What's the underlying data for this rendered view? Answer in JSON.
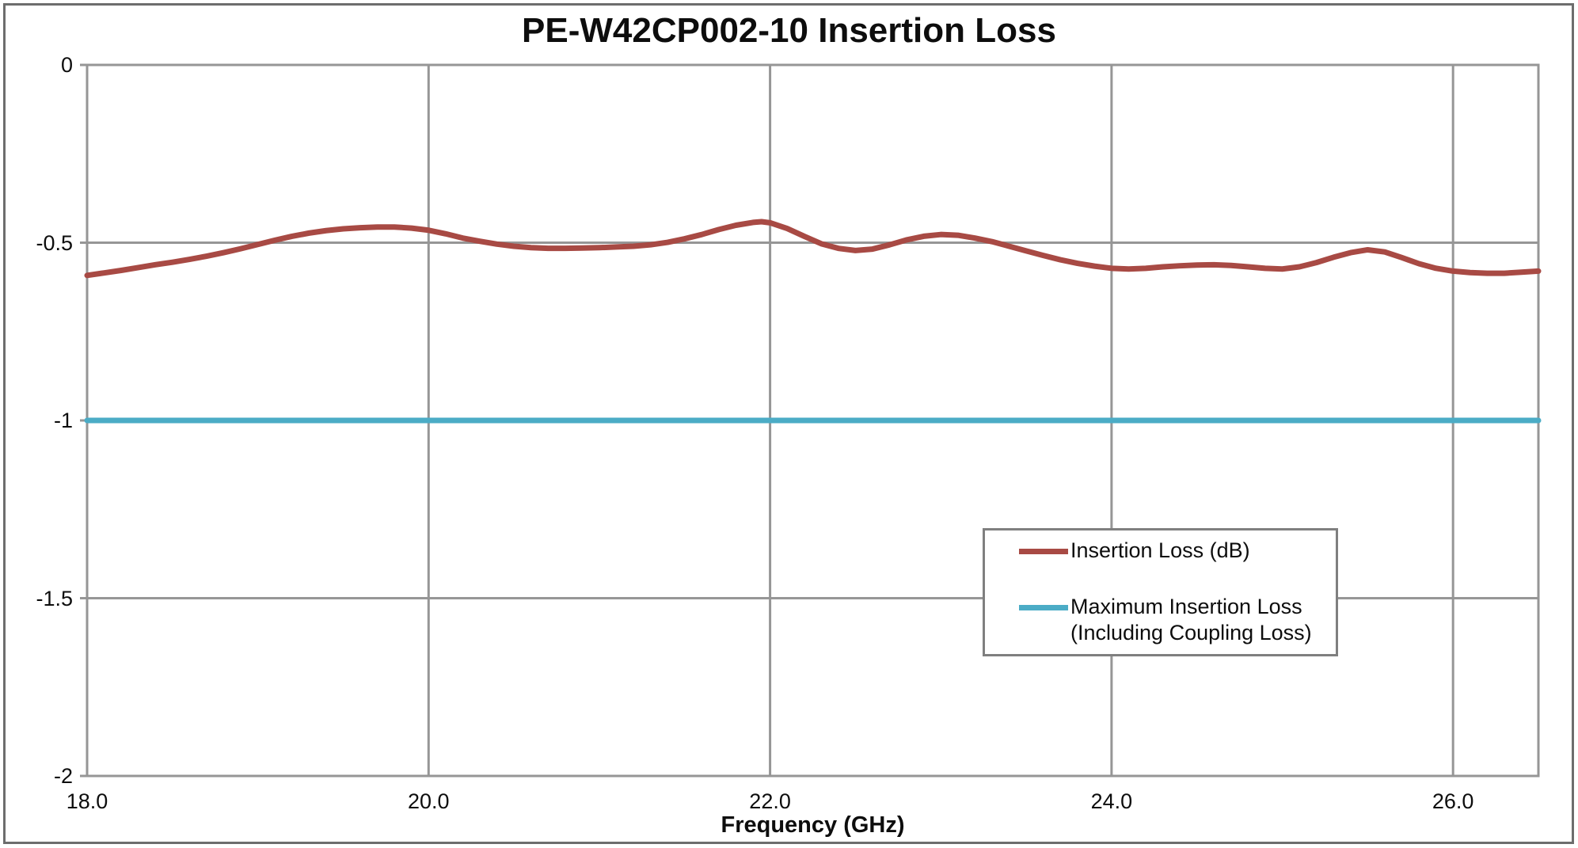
{
  "chart_data": {
    "type": "line",
    "title": "PE-W42CP002-10 Insertion Loss",
    "xlabel": "Frequency (GHz)",
    "ylabel": "",
    "xlim": [
      18.0,
      26.5
    ],
    "ylim": [
      -2.0,
      0.0
    ],
    "x_ticks": [
      18.0,
      20.0,
      22.0,
      24.0,
      26.0
    ],
    "x_tick_labels": [
      "18.0",
      "20.0",
      "22.0",
      "24.0",
      "26.0"
    ],
    "y_ticks": [
      0,
      -0.5,
      -1,
      -1.5,
      -2
    ],
    "y_tick_labels": [
      "0",
      "-0.5",
      "-1",
      "-1.5",
      "-2"
    ],
    "grid": true,
    "legend_position": "inside right-center",
    "series": [
      {
        "name": "Insertion Loss (dB)",
        "color": "#A84A44",
        "stroke_width": 7,
        "points": [
          [
            18.0,
            -0.592
          ],
          [
            18.1,
            -0.585
          ],
          [
            18.2,
            -0.578
          ],
          [
            18.3,
            -0.57
          ],
          [
            18.4,
            -0.562
          ],
          [
            18.5,
            -0.555
          ],
          [
            18.6,
            -0.547
          ],
          [
            18.7,
            -0.538
          ],
          [
            18.8,
            -0.528
          ],
          [
            18.9,
            -0.517
          ],
          [
            19.0,
            -0.505
          ],
          [
            19.1,
            -0.493
          ],
          [
            19.2,
            -0.482
          ],
          [
            19.3,
            -0.473
          ],
          [
            19.4,
            -0.466
          ],
          [
            19.5,
            -0.461
          ],
          [
            19.6,
            -0.458
          ],
          [
            19.7,
            -0.456
          ],
          [
            19.8,
            -0.456
          ],
          [
            19.9,
            -0.459
          ],
          [
            20.0,
            -0.465
          ],
          [
            20.1,
            -0.475
          ],
          [
            20.2,
            -0.487
          ],
          [
            20.3,
            -0.496
          ],
          [
            20.4,
            -0.504
          ],
          [
            20.5,
            -0.51
          ],
          [
            20.6,
            -0.514
          ],
          [
            20.7,
            -0.516
          ],
          [
            20.8,
            -0.516
          ],
          [
            20.9,
            -0.515
          ],
          [
            21.0,
            -0.514
          ],
          [
            21.1,
            -0.512
          ],
          [
            21.2,
            -0.51
          ],
          [
            21.3,
            -0.506
          ],
          [
            21.4,
            -0.499
          ],
          [
            21.5,
            -0.489
          ],
          [
            21.6,
            -0.477
          ],
          [
            21.7,
            -0.463
          ],
          [
            21.8,
            -0.451
          ],
          [
            21.9,
            -0.443
          ],
          [
            21.95,
            -0.441
          ],
          [
            22.0,
            -0.444
          ],
          [
            22.1,
            -0.46
          ],
          [
            22.2,
            -0.482
          ],
          [
            22.3,
            -0.503
          ],
          [
            22.4,
            -0.516
          ],
          [
            22.5,
            -0.522
          ],
          [
            22.6,
            -0.518
          ],
          [
            22.7,
            -0.506
          ],
          [
            22.8,
            -0.492
          ],
          [
            22.9,
            -0.482
          ],
          [
            23.0,
            -0.477
          ],
          [
            23.1,
            -0.479
          ],
          [
            23.2,
            -0.487
          ],
          [
            23.3,
            -0.497
          ],
          [
            23.4,
            -0.51
          ],
          [
            23.5,
            -0.523
          ],
          [
            23.6,
            -0.536
          ],
          [
            23.7,
            -0.548
          ],
          [
            23.8,
            -0.558
          ],
          [
            23.9,
            -0.566
          ],
          [
            24.0,
            -0.572
          ],
          [
            24.1,
            -0.574
          ],
          [
            24.2,
            -0.572
          ],
          [
            24.3,
            -0.568
          ],
          [
            24.4,
            -0.565
          ],
          [
            24.5,
            -0.563
          ],
          [
            24.6,
            -0.562
          ],
          [
            24.7,
            -0.564
          ],
          [
            24.8,
            -0.568
          ],
          [
            24.9,
            -0.572
          ],
          [
            25.0,
            -0.574
          ],
          [
            25.1,
            -0.568
          ],
          [
            25.2,
            -0.556
          ],
          [
            25.3,
            -0.541
          ],
          [
            25.4,
            -0.528
          ],
          [
            25.5,
            -0.52
          ],
          [
            25.6,
            -0.526
          ],
          [
            25.7,
            -0.542
          ],
          [
            25.8,
            -0.559
          ],
          [
            25.9,
            -0.572
          ],
          [
            26.0,
            -0.58
          ],
          [
            26.1,
            -0.584
          ],
          [
            26.2,
            -0.586
          ],
          [
            26.3,
            -0.586
          ],
          [
            26.4,
            -0.583
          ],
          [
            26.5,
            -0.58
          ]
        ]
      },
      {
        "name": "Maximum Insertion Loss (Including Coupling Loss)",
        "color": "#4BACC6",
        "stroke_width": 7,
        "points": [
          [
            18.0,
            -1.0
          ],
          [
            26.5,
            -1.0
          ]
        ]
      }
    ]
  },
  "legend": {
    "items": [
      {
        "series": 0,
        "label_lines": [
          "Insertion Loss (dB)"
        ]
      },
      {
        "series": 1,
        "label_lines": [
          "Maximum Insertion Loss",
          "(Including Coupling Loss)"
        ]
      }
    ]
  },
  "colors": {
    "background": "#FFFFFF",
    "gridline": "#969696",
    "plot_border": "#969696",
    "outer_border": "#6D6D6D",
    "legend_border": "#7F7F7F",
    "text": "#0D0D0D"
  }
}
